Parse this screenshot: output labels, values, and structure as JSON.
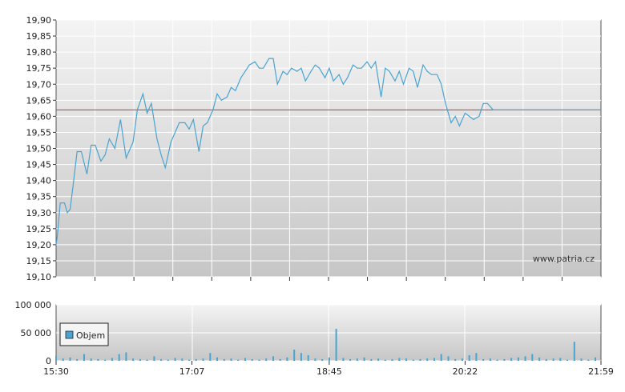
{
  "chart_data": [
    {
      "type": "line",
      "title": "",
      "xlabel": "",
      "ylabel": "",
      "ylim": [
        19.1,
        19.9
      ],
      "y_ticks": [
        "19,10",
        "19,15",
        "19,20",
        "19,25",
        "19,30",
        "19,35",
        "19,40",
        "19,45",
        "19,50",
        "19,55",
        "19,60",
        "19,65",
        "19,70",
        "19,75",
        "19,80",
        "19,85",
        "19,90"
      ],
      "reference_line": 19.62,
      "watermark": "www.patria.cz",
      "grid": true,
      "colors": {
        "line": "#4aa3d0",
        "reference": "#cc3333",
        "plot_top": "#f2f2f2",
        "plot_bottom": "#c8c8c8"
      },
      "series": [
        {
          "x": [
            "15:30",
            "15:31",
            "15:33",
            "15:36",
            "15:38",
            "15:40",
            "15:42",
            "15:45",
            "15:48",
            "15:52",
            "15:55",
            "15:58",
            "16:02",
            "16:05",
            "16:08",
            "16:12",
            "16:16",
            "16:20",
            "16:25",
            "16:28",
            "16:32",
            "16:35",
            "16:38",
            "16:42",
            "16:45",
            "16:48",
            "16:52",
            "16:55",
            "16:58",
            "17:02",
            "17:05",
            "17:08",
            "17:12",
            "17:15",
            "17:18",
            "17:22",
            "17:25",
            "17:28",
            "17:32",
            "17:35",
            "17:38",
            "17:42",
            "17:45",
            "17:48",
            "17:52",
            "17:55",
            "17:58",
            "18:02",
            "18:05",
            "18:08",
            "18:12",
            "18:15",
            "18:18",
            "18:22",
            "18:25",
            "18:28",
            "18:32",
            "18:35",
            "18:38",
            "18:42",
            "18:45",
            "18:48",
            "18:52",
            "18:55",
            "18:58",
            "19:02",
            "19:05",
            "19:08",
            "19:12",
            "19:15",
            "19:18",
            "19:22",
            "19:25",
            "19:28",
            "19:32",
            "19:35",
            "19:38",
            "19:42",
            "19:45",
            "19:48",
            "19:52",
            "19:55",
            "19:58",
            "20:02",
            "20:05",
            "20:08",
            "20:12",
            "20:15",
            "20:18",
            "20:22",
            "20:25",
            "20:28",
            "20:32",
            "20:35",
            "20:38",
            "20:42",
            "20:45",
            "20:48",
            "20:52",
            "20:55",
            "20:58",
            "21:02",
            "21:05",
            "21:08",
            "21:12",
            "21:15",
            "21:18",
            "21:22",
            "21:25",
            "21:28",
            "21:32",
            "21:35",
            "21:38",
            "21:42",
            "21:45",
            "21:48",
            "21:52",
            "21:55",
            "21:58",
            "21:59"
          ],
          "values": [
            19.2,
            19.23,
            19.33,
            19.33,
            19.3,
            19.31,
            19.38,
            19.49,
            19.49,
            19.42,
            19.51,
            19.51,
            19.46,
            19.48,
            19.53,
            19.5,
            19.59,
            19.47,
            19.52,
            19.62,
            19.67,
            19.61,
            19.64,
            19.53,
            19.48,
            19.44,
            19.52,
            19.55,
            19.58,
            19.58,
            19.56,
            19.59,
            19.49,
            19.57,
            19.58,
            19.62,
            19.67,
            19.65,
            19.66,
            19.69,
            19.68,
            19.72,
            19.74,
            19.76,
            19.77,
            19.75,
            19.75,
            19.78,
            19.78,
            19.7,
            19.74,
            19.73,
            19.75,
            19.74,
            19.75,
            19.71,
            19.74,
            19.76,
            19.75,
            19.72,
            19.75,
            19.71,
            19.73,
            19.7,
            19.72,
            19.76,
            19.75,
            19.75,
            19.77,
            19.75,
            19.77,
            19.66,
            19.75,
            19.74,
            19.71,
            19.74,
            19.7,
            19.75,
            19.74,
            19.69,
            19.76,
            19.74,
            19.73,
            19.73,
            19.7,
            19.64,
            19.58,
            19.6,
            19.57,
            19.61,
            19.6,
            19.59,
            19.6,
            19.64,
            19.64,
            19.62,
            19.62,
            19.62,
            19.62,
            19.62,
            19.62,
            19.62,
            19.62,
            19.62,
            19.62,
            19.62,
            19.62,
            19.62,
            19.62,
            19.62,
            19.62,
            19.62,
            19.62,
            19.62,
            19.62,
            19.62,
            19.62,
            19.62,
            19.62,
            19.62
          ]
        }
      ]
    },
    {
      "type": "bar",
      "title": "",
      "xlabel": "",
      "ylabel": "",
      "ylim": [
        0,
        100000
      ],
      "y_ticks": [
        "0",
        "50 000",
        "100 000"
      ],
      "x_ticks": [
        "15:30",
        "17:07",
        "18:45",
        "20:22",
        "21:59"
      ],
      "legend": {
        "label": "Objem",
        "position": "left"
      },
      "grid": true,
      "colors": {
        "bar": "#4aa3d0",
        "plot_top": "#f2f2f2",
        "plot_bottom": "#c8c8c8"
      },
      "series": [
        {
          "name": "Objem",
          "x": [
            "15:30",
            "15:35",
            "15:40",
            "15:45",
            "15:50",
            "15:55",
            "16:00",
            "16:05",
            "16:10",
            "16:15",
            "16:20",
            "16:25",
            "16:30",
            "16:35",
            "16:40",
            "16:45",
            "16:50",
            "16:55",
            "17:00",
            "17:05",
            "17:10",
            "17:15",
            "17:20",
            "17:25",
            "17:30",
            "17:35",
            "17:40",
            "17:45",
            "17:50",
            "17:55",
            "18:00",
            "18:05",
            "18:10",
            "18:15",
            "18:20",
            "18:25",
            "18:30",
            "18:35",
            "18:40",
            "18:45",
            "18:50",
            "18:55",
            "19:00",
            "19:05",
            "19:10",
            "19:15",
            "19:20",
            "19:25",
            "19:30",
            "19:35",
            "19:40",
            "19:45",
            "19:50",
            "19:55",
            "20:00",
            "20:05",
            "20:10",
            "20:15",
            "20:20",
            "20:25",
            "20:30",
            "20:35",
            "20:40",
            "20:45",
            "20:50",
            "20:55",
            "21:00",
            "21:05",
            "21:10",
            "21:15",
            "21:20",
            "21:25",
            "21:30",
            "21:35",
            "21:40",
            "21:45",
            "21:50",
            "21:55"
          ],
          "values": [
            9000,
            4000,
            6000,
            3000,
            12000,
            4000,
            3000,
            2000,
            5000,
            12000,
            15000,
            4000,
            3000,
            2000,
            8000,
            3000,
            2000,
            5000,
            4000,
            2000,
            3000,
            4000,
            14000,
            6000,
            3000,
            4000,
            2000,
            5000,
            3000,
            2000,
            4000,
            8000,
            3000,
            6000,
            20000,
            14000,
            10000,
            4000,
            3000,
            6000,
            57000,
            5000,
            3000,
            4000,
            6000,
            3000,
            4000,
            2000,
            3000,
            5000,
            4000,
            2000,
            3000,
            4000,
            5000,
            12000,
            8000,
            3000,
            4000,
            10000,
            14000,
            3000,
            4000,
            2000,
            3000,
            5000,
            6000,
            8000,
            12000,
            6000,
            3000,
            4000,
            5000,
            2000,
            34000,
            4000,
            2000,
            6000
          ]
        }
      ]
    }
  ]
}
